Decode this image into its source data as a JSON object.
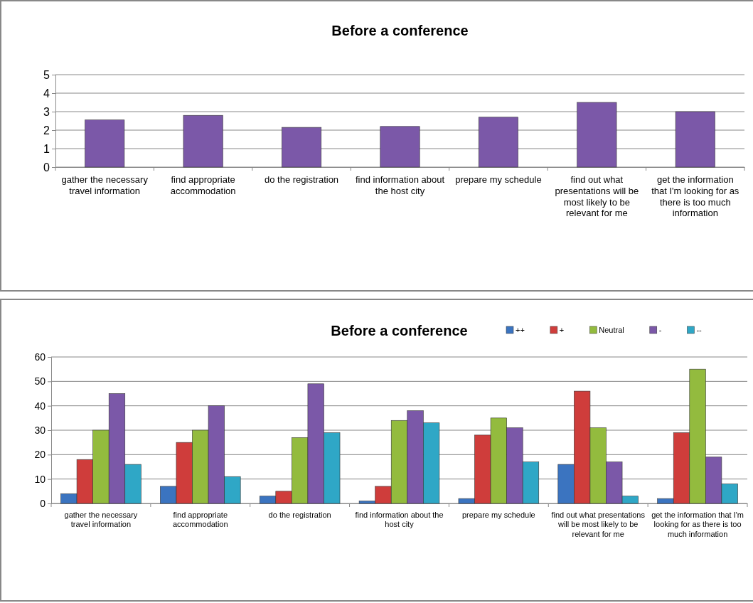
{
  "chart_data": [
    {
      "type": "bar",
      "title": "Before a conference",
      "categories": [
        "gather the necessary travel information",
        "find appropriate accommodation",
        "do the registration",
        "find information about the host city",
        "prepare my schedule",
        "find out what presentations will be most likely to be relevant for me",
        "get the information that I'm looking for as there is too much information"
      ],
      "values": [
        2.55,
        2.8,
        2.15,
        2.2,
        2.7,
        3.5,
        3.0
      ],
      "color": "#7b58a8",
      "ylim": [
        0,
        5
      ],
      "yticks": [
        0,
        1,
        2,
        3,
        4,
        5
      ],
      "grid": "y",
      "legend": false
    },
    {
      "type": "bar",
      "title": "Before a conference",
      "categories": [
        "gather the necessary travel information",
        "find appropriate accommodation",
        "do the registration",
        "find information about the host city",
        "prepare my schedule",
        "find out what presentations will be most likely to be relevant for me",
        "get the information that I'm looking for as there is too much information"
      ],
      "series": [
        {
          "name": "++",
          "color": "#3b74c0",
          "values": [
            4,
            7,
            3,
            1,
            2,
            16,
            2
          ]
        },
        {
          "name": "+",
          "color": "#cf3d3b",
          "values": [
            18,
            25,
            5,
            7,
            28,
            46,
            29
          ]
        },
        {
          "name": "Neutral",
          "color": "#93bb3e",
          "values": [
            30,
            30,
            27,
            34,
            35,
            31,
            55
          ]
        },
        {
          "name": "-",
          "color": "#7b58a8",
          "values": [
            45,
            40,
            49,
            38,
            31,
            17,
            19
          ]
        },
        {
          "name": "--",
          "color": "#2fa7c6",
          "values": [
            16,
            11,
            29,
            33,
            17,
            3,
            8
          ]
        }
      ],
      "ylim": [
        0,
        60
      ],
      "yticks": [
        0,
        10,
        20,
        30,
        40,
        50,
        60
      ],
      "grid": "y",
      "legend": "top right"
    }
  ]
}
